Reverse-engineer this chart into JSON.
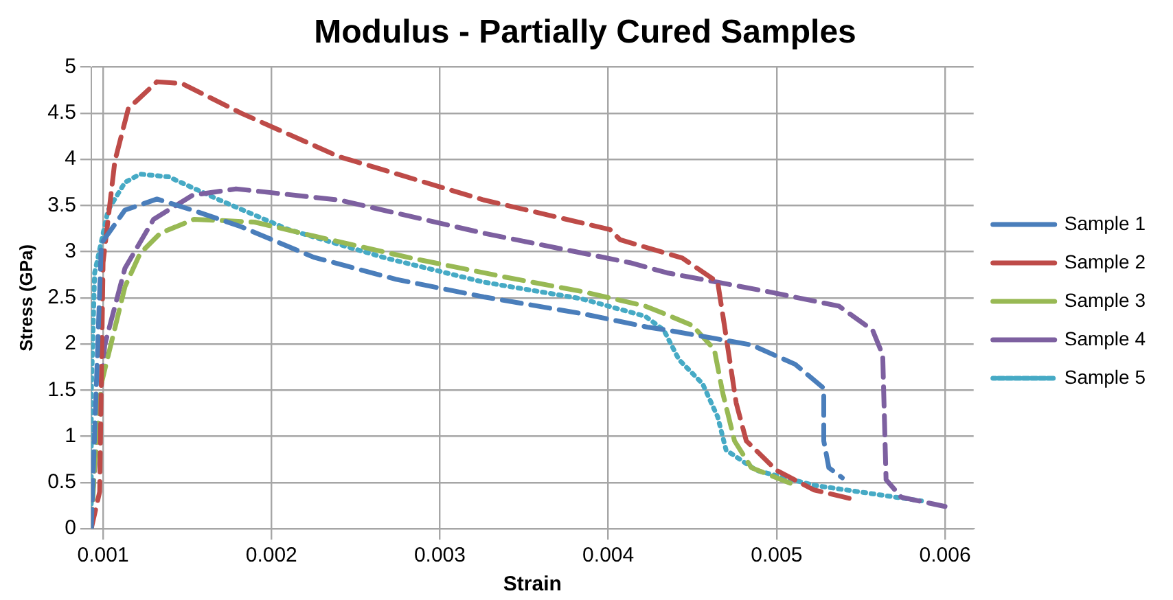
{
  "chart_data": {
    "type": "line",
    "title": "Modulus - Partially Cured Samples",
    "xlabel": "Strain",
    "ylabel": "Stress (GPa)",
    "xlim": [
      0.00093,
      0.00617
    ],
    "xticks": [
      0.001,
      0.002,
      0.003,
      0.004,
      0.005,
      0.006
    ],
    "ylim": [
      0,
      5
    ],
    "yticks": [
      0,
      0.5,
      1,
      1.5,
      2,
      2.5,
      3,
      3.5,
      4,
      4.5,
      5
    ],
    "grid": true,
    "legend": "right",
    "marker": "none",
    "series": [
      {
        "name": "Sample 1",
        "color": "#4a7ebb",
        "line_style": "dashed",
        "x": [
          0.00093,
          0.00099,
          0.00113,
          0.00132,
          0.00153,
          0.00182,
          0.00225,
          0.00274,
          0.00326,
          0.00384,
          0.00424,
          0.00435,
          0.00485,
          0.00511,
          0.00528,
          0.00528,
          0.00531,
          0.00539
        ],
        "values": [
          0,
          3.09,
          3.45,
          3.57,
          3.45,
          3.27,
          2.94,
          2.7,
          2.51,
          2.33,
          2.18,
          2.15,
          1.99,
          1.78,
          1.52,
          0.95,
          0.66,
          0.55
        ]
      },
      {
        "name": "Sample 2",
        "color": "#be4b48",
        "line_style": "dashed",
        "x": [
          0.00093,
          0.00098,
          0.001,
          0.00107,
          0.00115,
          0.00132,
          0.00147,
          0.00182,
          0.0024,
          0.00326,
          0.00401,
          0.00407,
          0.00444,
          0.00465,
          0.00469,
          0.00476,
          0.00482,
          0.005,
          0.00522,
          0.00545
        ],
        "values": [
          0,
          0.4,
          2.88,
          3.98,
          4.55,
          4.84,
          4.82,
          4.5,
          4.03,
          3.56,
          3.24,
          3.13,
          2.93,
          2.67,
          2.2,
          1.36,
          0.95,
          0.63,
          0.42,
          0.32
        ]
      },
      {
        "name": "Sample 3",
        "color": "#98b954",
        "line_style": "dashed",
        "x": [
          0.00093,
          0.00095,
          0.00099,
          0.00113,
          0.00122,
          0.00134,
          0.00154,
          0.0019,
          0.00225,
          0.00283,
          0.0034,
          0.00384,
          0.00422,
          0.00433,
          0.0045,
          0.00463,
          0.00468,
          0.00475,
          0.00485,
          0.00511
        ],
        "values": [
          0,
          0.69,
          1.57,
          2.62,
          2.98,
          3.2,
          3.35,
          3.32,
          3.17,
          2.93,
          2.72,
          2.57,
          2.41,
          2.33,
          2.2,
          1.94,
          1.47,
          0.95,
          0.66,
          0.47
        ]
      },
      {
        "name": "Sample 4",
        "color": "#7d60a0",
        "line_style": "dashed",
        "x": [
          0.00093,
          0.00094,
          0.00101,
          0.00113,
          0.0013,
          0.00153,
          0.00179,
          0.0024,
          0.00326,
          0.00413,
          0.00435,
          0.00494,
          0.00537,
          0.00557,
          0.00563,
          0.00565,
          0.00574,
          0.006
        ],
        "values": [
          0,
          0.42,
          1.99,
          2.82,
          3.35,
          3.61,
          3.68,
          3.56,
          3.2,
          2.88,
          2.77,
          2.57,
          2.41,
          2.15,
          1.88,
          0.53,
          0.34,
          0.24
        ]
      },
      {
        "name": "Sample 5",
        "color": "#46aac5",
        "line_style": "dotted",
        "x": [
          0.00093,
          0.00093,
          0.00095,
          0.00103,
          0.00113,
          0.00122,
          0.00139,
          0.00169,
          0.0021,
          0.00268,
          0.00326,
          0.00384,
          0.00422,
          0.00433,
          0.00442,
          0.00456,
          0.00465,
          0.0047,
          0.00488,
          0.00522,
          0.00586
        ],
        "values": [
          0,
          1.47,
          2.77,
          3.45,
          3.75,
          3.84,
          3.81,
          3.56,
          3.24,
          2.93,
          2.67,
          2.49,
          2.3,
          2.15,
          1.83,
          1.57,
          1.21,
          0.85,
          0.63,
          0.47,
          0.3
        ]
      }
    ]
  }
}
